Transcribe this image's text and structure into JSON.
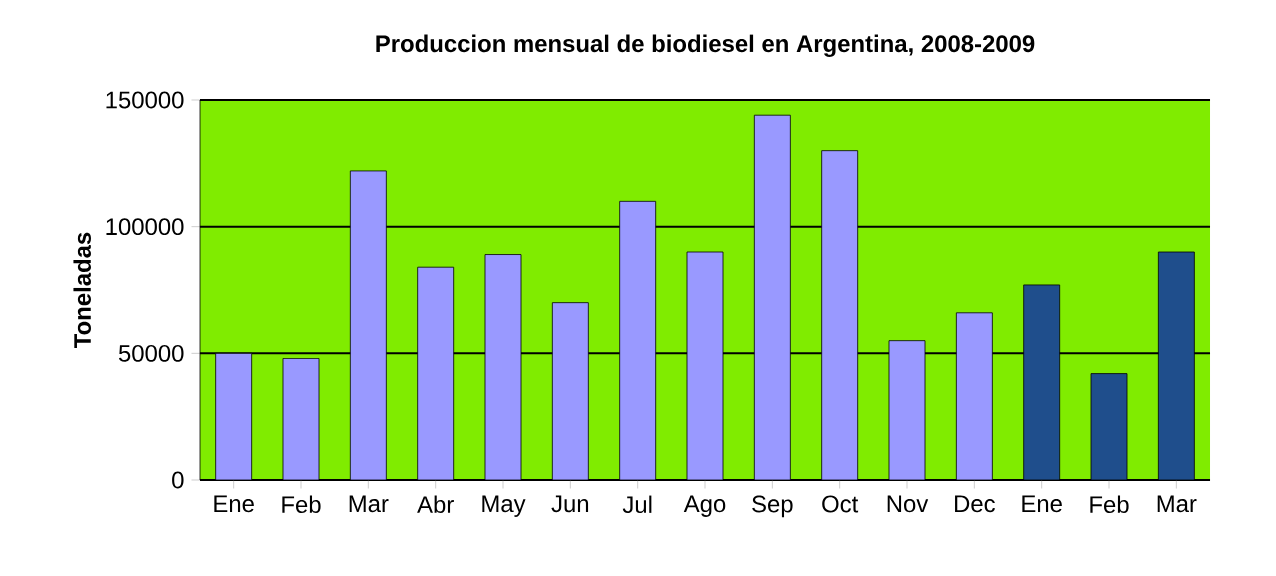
{
  "chart_data": {
    "type": "bar",
    "title": "Produccion mensual de biodiesel en Argentina, 2008-2009",
    "ylabel": "Toneladas",
    "categories": [
      "Ene",
      "Feb",
      "Mar",
      "Abr",
      "May",
      "Jun",
      "Jul",
      "Ago",
      "Sep",
      "Oct",
      "Nov",
      "Dec",
      "Ene",
      "Feb",
      "Mar"
    ],
    "values": [
      50000,
      48000,
      122000,
      84000,
      89000,
      70000,
      110000,
      90000,
      144000,
      130000,
      55000,
      66000,
      77000,
      42000,
      90000
    ],
    "colors": [
      "#9999ff",
      "#9999ff",
      "#9999ff",
      "#9999ff",
      "#9999ff",
      "#9999ff",
      "#9999ff",
      "#9999ff",
      "#9999ff",
      "#9999ff",
      "#9999ff",
      "#9999ff",
      "#1f4e8c",
      "#1f4e8c",
      "#1f4e8c"
    ],
    "ylim": [
      0,
      150000
    ],
    "yticks": [
      0,
      50000,
      100000,
      150000
    ],
    "grid": "y"
  }
}
